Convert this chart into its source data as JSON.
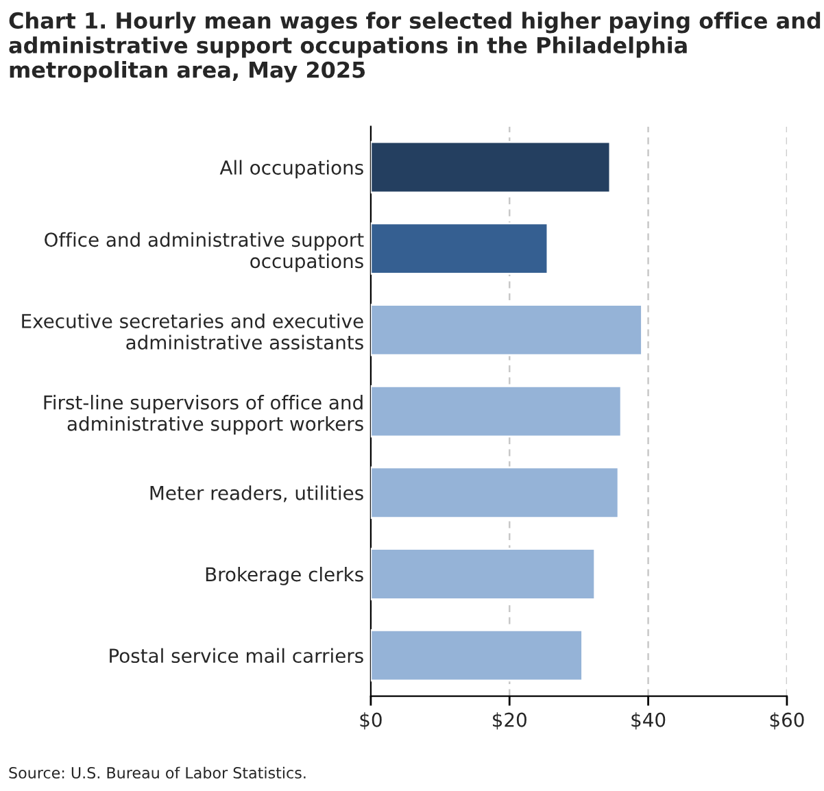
{
  "chart_data": {
    "type": "bar",
    "orientation": "horizontal",
    "title": "Chart 1. Hourly mean wages for selected higher paying office and administrative support occupations in the Philadelphia metropolitan area, May 2025",
    "categories": [
      "All occupations",
      "Office and administrative support\noccupations",
      "Executive secretaries and executive\nadministrative assistants",
      "First-line supervisors of office and\nadministrative support workers",
      "Meter readers, utilities",
      "Brokerage clerks",
      "Postal service mail carriers"
    ],
    "values": [
      34.5,
      25.5,
      39.1,
      36.1,
      35.7,
      32.3,
      30.5
    ],
    "colors": [
      "#243f60",
      "#355f91",
      "#95b3d7",
      "#95b3d7",
      "#95b3d7",
      "#95b3d7",
      "#95b3d7"
    ],
    "xlim": [
      0,
      60
    ],
    "xticks": [
      {
        "value": 0,
        "label": "$0"
      },
      {
        "value": 20,
        "label": "$20"
      },
      {
        "value": 40,
        "label": "$40"
      },
      {
        "value": 60,
        "label": "$60"
      }
    ],
    "grid": "x",
    "annotations": [
      "Source: U.S. Bureau of Labor Statistics."
    ]
  }
}
